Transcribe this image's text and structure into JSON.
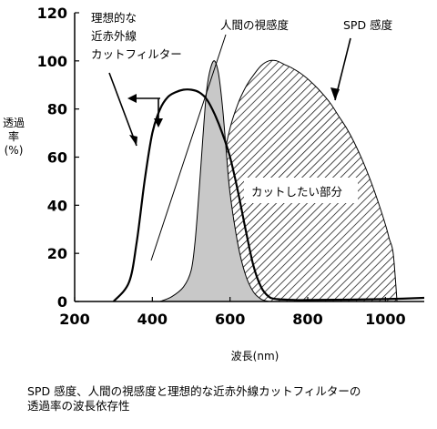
{
  "chart_data": {
    "type": "area",
    "xlabel": "波長(nm)",
    "ylabel": "透過率(%)",
    "xlim": [
      200,
      1100
    ],
    "ylim": [
      0,
      120
    ],
    "xticks": [
      200,
      400,
      600,
      800,
      1000
    ],
    "yticks": [
      0,
      20,
      40,
      60,
      80,
      100,
      120
    ],
    "series": [
      {
        "name": "人間の視感度",
        "style": "gray-fill",
        "color": "#c8c8c8",
        "x": [
          420,
          450,
          480,
          500,
          510,
          520,
          530,
          540,
          550,
          560,
          570,
          580,
          590,
          600,
          620,
          640,
          660,
          680,
          700
        ],
        "y": [
          0,
          2,
          6,
          13,
          25,
          45,
          68,
          88,
          97,
          100,
          95,
          82,
          63,
          45,
          24,
          11,
          4,
          1,
          0
        ]
      },
      {
        "name": "SPD 感度",
        "style": "hatched",
        "color": "#000000",
        "x": [
          420,
          460,
          500,
          530,
          560,
          580,
          600,
          620,
          640,
          660,
          680,
          700,
          720,
          740,
          760,
          780,
          800,
          820,
          840,
          860,
          880,
          900,
          920,
          940,
          960,
          980,
          1000,
          1010,
          1020,
          1030
        ],
        "y": [
          0,
          2,
          4,
          8,
          28,
          56,
          72,
          82,
          89,
          94,
          98,
          100,
          100,
          98.5,
          97,
          95,
          92.5,
          89.5,
          86,
          82,
          77,
          72,
          66,
          59,
          51,
          42,
          32,
          26,
          20,
          0
        ]
      },
      {
        "name": "理想的な近赤外線カットフィルター",
        "style": "line",
        "color": "#000000",
        "x": [
          300,
          340,
          360,
          380,
          400,
          420,
          440,
          460,
          480,
          500,
          520,
          540,
          560,
          580,
          600,
          620,
          640,
          660,
          680,
          700,
          720,
          760,
          800,
          1000,
          1100
        ],
        "y": [
          0,
          8,
          25,
          50,
          70,
          80,
          85,
          87,
          88,
          88,
          87,
          84,
          78,
          70,
          60,
          46,
          30,
          15,
          6,
          2,
          1,
          0.7,
          0.6,
          1,
          1.5
        ]
      }
    ],
    "annotations": {
      "filter_label_line1": "理想的な",
      "filter_label_line2": "近赤外線",
      "filter_label_line3": "カットフィルター",
      "visual_label": "人間の視感度",
      "spd_label": "SPD 感度",
      "cut_region_label": "カットしたい部分"
    }
  },
  "caption": {
    "line1": "SPD 感度、人間の視感度と理想的な近赤外線カットフィルターの",
    "line2": "透過率の波長依存性"
  }
}
